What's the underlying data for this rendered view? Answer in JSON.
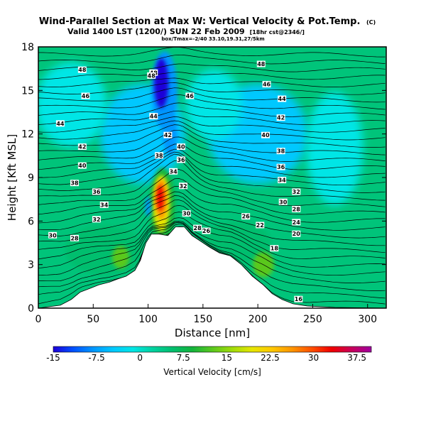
{
  "chart_data": {
    "type": "heatmap",
    "title": "Wind-Parallel Section at Max W: Vertical Velocity & Pot.Temp.",
    "title_mark": "(C)",
    "subtitle": "Valid 1400 LST (1200/) SUN 22 Feb 2009",
    "subtitle_note": "[18hr cst@2346/]",
    "subtitle2": "box/Tmax=-2/40 33.10,19.31,27/5km",
    "xlabel": "Distance [nm]",
    "ylabel": "Height [Kft MSL]",
    "xlim": [
      0,
      317
    ],
    "ylim": [
      0,
      18
    ],
    "x_ticks": [
      "0",
      "50",
      "100",
      "150",
      "200",
      "250",
      "300"
    ],
    "y_ticks": [
      "0",
      "3",
      "6",
      "9",
      "12",
      "15",
      "18"
    ],
    "colorbar": {
      "label": "Vertical Velocity [cm/s]",
      "range": [
        -15,
        40
      ],
      "ticks": [
        "-15",
        "-7.5",
        "0",
        "7.5",
        "15",
        "22.5",
        "30",
        "37.5"
      ],
      "colors": [
        "#1e00d8",
        "#0050ff",
        "#0096ff",
        "#00c8ff",
        "#00e6e6",
        "#00d2a0",
        "#00be6e",
        "#14b43c",
        "#5ac81e",
        "#a0dc0a",
        "#e6e600",
        "#ffc800",
        "#ff9600",
        "#ff5000",
        "#f00000",
        "#c8005a",
        "#a000a0"
      ]
    },
    "terrain_profile": [
      {
        "x": 0,
        "y": 0
      },
      {
        "x": 20,
        "y": 0.2
      },
      {
        "x": 30,
        "y": 0.6
      },
      {
        "x": 38,
        "y": 1.1
      },
      {
        "x": 45,
        "y": 1.3
      },
      {
        "x": 55,
        "y": 1.6
      },
      {
        "x": 65,
        "y": 1.8
      },
      {
        "x": 72,
        "y": 2.0
      },
      {
        "x": 80,
        "y": 2.2
      },
      {
        "x": 88,
        "y": 2.6
      },
      {
        "x": 93,
        "y": 3.3
      },
      {
        "x": 98,
        "y": 4.5
      },
      {
        "x": 103,
        "y": 5.1
      },
      {
        "x": 110,
        "y": 5.1
      },
      {
        "x": 118,
        "y": 5.0
      },
      {
        "x": 125,
        "y": 5.6
      },
      {
        "x": 133,
        "y": 5.6
      },
      {
        "x": 140,
        "y": 5.0
      },
      {
        "x": 148,
        "y": 4.6
      },
      {
        "x": 156,
        "y": 4.2
      },
      {
        "x": 165,
        "y": 3.8
      },
      {
        "x": 175,
        "y": 3.6
      },
      {
        "x": 185,
        "y": 3.0
      },
      {
        "x": 195,
        "y": 2.2
      },
      {
        "x": 205,
        "y": 1.6
      },
      {
        "x": 213,
        "y": 1.0
      },
      {
        "x": 222,
        "y": 0.6
      },
      {
        "x": 232,
        "y": 0.3
      },
      {
        "x": 245,
        "y": 0.15
      },
      {
        "x": 270,
        "y": 0.05
      },
      {
        "x": 317,
        "y": 0
      }
    ],
    "isentrope_labels": [
      {
        "x": 40,
        "y": 16.4,
        "text": "48"
      },
      {
        "x": 105,
        "y": 16.2,
        "text": "48"
      },
      {
        "x": 43,
        "y": 14.6,
        "text": "46"
      },
      {
        "x": 20,
        "y": 12.7,
        "text": "44"
      },
      {
        "x": 40,
        "y": 11.1,
        "text": "42"
      },
      {
        "x": 40,
        "y": 9.8,
        "text": "40"
      },
      {
        "x": 33,
        "y": 8.6,
        "text": "38"
      },
      {
        "x": 53,
        "y": 8.0,
        "text": "36"
      },
      {
        "x": 60,
        "y": 7.1,
        "text": "34"
      },
      {
        "x": 53,
        "y": 6.1,
        "text": "32"
      },
      {
        "x": 13,
        "y": 5.0,
        "text": "30"
      },
      {
        "x": 33,
        "y": 4.8,
        "text": "28"
      },
      {
        "x": 103,
        "y": 16.0,
        "text": "48"
      },
      {
        "x": 138,
        "y": 14.6,
        "text": "46"
      },
      {
        "x": 105,
        "y": 13.2,
        "text": "44"
      },
      {
        "x": 118,
        "y": 11.9,
        "text": "42"
      },
      {
        "x": 130,
        "y": 11.1,
        "text": "40"
      },
      {
        "x": 110,
        "y": 10.5,
        "text": "38"
      },
      {
        "x": 130,
        "y": 10.2,
        "text": "36"
      },
      {
        "x": 123,
        "y": 9.4,
        "text": "34"
      },
      {
        "x": 132,
        "y": 8.4,
        "text": "32"
      },
      {
        "x": 135,
        "y": 6.5,
        "text": "30"
      },
      {
        "x": 145,
        "y": 5.5,
        "text": "28"
      },
      {
        "x": 153,
        "y": 5.3,
        "text": "26"
      },
      {
        "x": 203,
        "y": 16.8,
        "text": "48"
      },
      {
        "x": 208,
        "y": 15.4,
        "text": "46"
      },
      {
        "x": 222,
        "y": 14.4,
        "text": "44"
      },
      {
        "x": 221,
        "y": 13.1,
        "text": "42"
      },
      {
        "x": 207,
        "y": 11.9,
        "text": "40"
      },
      {
        "x": 221,
        "y": 10.8,
        "text": "38"
      },
      {
        "x": 221,
        "y": 9.7,
        "text": "36"
      },
      {
        "x": 222,
        "y": 8.8,
        "text": "34"
      },
      {
        "x": 235,
        "y": 8.0,
        "text": "32"
      },
      {
        "x": 223,
        "y": 7.3,
        "text": "30"
      },
      {
        "x": 235,
        "y": 6.8,
        "text": "28"
      },
      {
        "x": 189,
        "y": 6.3,
        "text": "26"
      },
      {
        "x": 235,
        "y": 5.9,
        "text": "24"
      },
      {
        "x": 202,
        "y": 5.7,
        "text": "22"
      },
      {
        "x": 235,
        "y": 5.1,
        "text": "20"
      },
      {
        "x": 215,
        "y": 4.1,
        "text": "18"
      },
      {
        "x": 237,
        "y": 0.6,
        "text": "16"
      }
    ],
    "velocity_features": [
      {
        "type": "updraft_core",
        "x": 112,
        "y": 7.5,
        "peak_cm_s": 36
      },
      {
        "type": "downdraft_core",
        "x": 112,
        "y": 15.0,
        "peak_cm_s": -14
      },
      {
        "type": "downdraft",
        "x": 100,
        "y": 7.0,
        "peak_cm_s": -8
      }
    ],
    "legend": "bottom colorbar"
  }
}
